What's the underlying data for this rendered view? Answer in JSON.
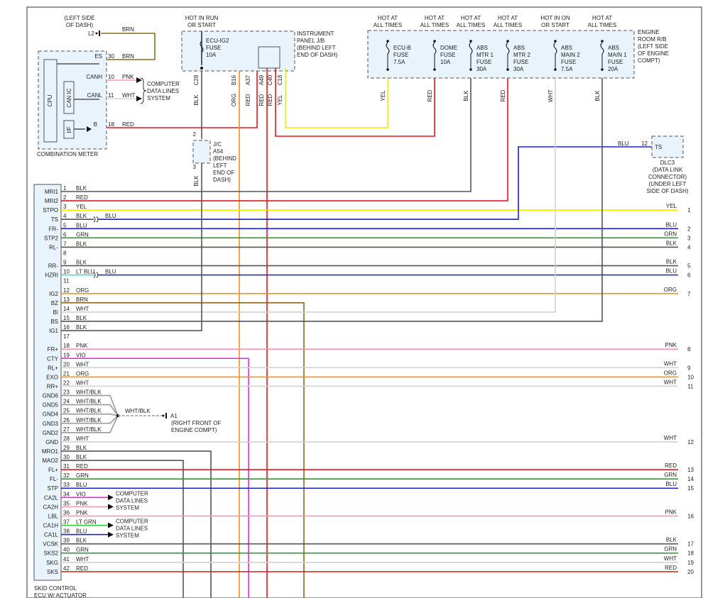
{
  "meter": {
    "location": [
      "(LEFT SIDE",
      "OF DASH)"
    ],
    "ground": "L2",
    "ground_wire": "BRN",
    "pins": [
      {
        "name": "ES",
        "number": "30",
        "wire": "BRN"
      },
      {
        "name": "CANH",
        "number": "10",
        "wire": "PNK"
      },
      {
        "name": "CANL",
        "number": "11",
        "wire": "WHT"
      },
      {
        "name": "B",
        "number": "18",
        "wire": "RED"
      }
    ],
    "data_lines": [
      "COMPUTER",
      "DATA LINES",
      "SYSTEM"
    ],
    "cpu": "CPU",
    "can_ic": "CAN IC",
    "interface": "I/F",
    "label": "COMBINATION METER"
  },
  "junction_block": {
    "power": [
      "HOT IN RUN",
      "OR START"
    ],
    "fuse": [
      "ECU-IG2",
      "FUSE",
      "10A"
    ],
    "label": [
      "INSTRUMENT",
      "PANEL J/B",
      "(BEHIND LEFT",
      "END OF DASH)"
    ],
    "connectors": [
      {
        "pin": "C28",
        "wire": "BLK"
      },
      {
        "pin": "B16",
        "wire": "ORG"
      },
      {
        "pin": "A37",
        "wire": "RED"
      },
      {
        "pin": "A49",
        "wire": "RED"
      },
      {
        "pin": "C40",
        "wire": "RED"
      },
      {
        "pin": "C18",
        "wire": "YEL"
      }
    ]
  },
  "joint_connector": {
    "top_pin": "2",
    "label": [
      "J/C",
      "A54",
      "(BEHIND",
      "LEFT",
      "END OF",
      "DASH)"
    ],
    "bottom_pin": "3",
    "wire": "BLK"
  },
  "relay_box": {
    "label": [
      "ENGINE",
      "ROOM R/B",
      "(LEFT SIDE",
      "OF ENGINE",
      "COMPT)"
    ],
    "fuses": [
      {
        "power": [
          "HOT AT",
          "ALL TIMES"
        ],
        "name": [
          "ECU-B",
          "FUSE",
          "7.5A"
        ],
        "wire": "YEL"
      },
      {
        "power": [
          "HOT AT",
          "ALL TIMES"
        ],
        "name": [
          "DOME",
          "FUSE",
          "10A"
        ],
        "wire": "RED"
      },
      {
        "power": [
          "HOT AT",
          "ALL TIMES"
        ],
        "name": [
          "ABS",
          "MTR 1",
          "FUSE",
          "30A"
        ],
        "wire": "BLK"
      },
      {
        "power": [
          "HOT AT",
          "ALL TIMES"
        ],
        "name": [
          "ABS",
          "MTR 2",
          "FUSE",
          "30A"
        ],
        "wire": "RED"
      },
      {
        "power": [
          "HOT IN ON",
          "OR START"
        ],
        "name": [
          "ABS",
          "MAIN 2",
          "FUSE",
          "7.5A"
        ],
        "wire": "WHT"
      },
      {
        "power": [
          "HOT AT",
          "ALL TIMES"
        ],
        "name": [
          "ABS",
          "MAIN 1",
          "FUSE",
          "20A"
        ],
        "wire": "BLK"
      }
    ]
  },
  "dlc": {
    "wire": "BLU",
    "number": "12",
    "pin": "TS",
    "label": [
      "DLC3",
      "(DATA LINK",
      "CONNECTOR)",
      "(UNDER LEFT",
      "SIDE OF DASH)"
    ]
  },
  "ground": {
    "wire": "WHT/BLK",
    "point": "A1",
    "label": [
      "(RIGHT FRONT OF",
      "ENGINE COMPT)"
    ]
  },
  "ecu": {
    "label": [
      "SKID CONTROL",
      "ECU W/ ACTUATOR"
    ],
    "data_lines": [
      [
        "COMPUTER",
        "DATA LINES",
        "SYSTEM"
      ],
      [
        "COMPUTER",
        "DATA LINES",
        "SYSTEM"
      ]
    ],
    "pins": [
      {
        "name": "MRI1",
        "number": "1",
        "wire": "BLK"
      },
      {
        "name": "MRI2",
        "number": "2",
        "wire": "RED"
      },
      {
        "name": "STPO",
        "number": "3",
        "wire": "YEL",
        "right_label": "YEL",
        "right_number": "1"
      },
      {
        "name": "TS",
        "number": "4",
        "wire": "BLK",
        "wire2": "BLU"
      },
      {
        "name": "FR-",
        "number": "5",
        "wire": "BLU",
        "right_label": "BLU",
        "right_number": "2"
      },
      {
        "name": "STP2",
        "number": "6",
        "wire": "GRN",
        "right_label": "GRN",
        "right_number": "3"
      },
      {
        "name": "RL-",
        "number": "7",
        "wire": "BLK",
        "right_label": "BLK",
        "right_number": "4"
      },
      {
        "number": "8"
      },
      {
        "name": "RR-",
        "number": "9",
        "wire": "BLK",
        "right_label": "BLK",
        "right_number": "5"
      },
      {
        "name": "HZRI",
        "number": "10",
        "wire": "LT BLU",
        "wire2": "BLU",
        "right_label": "BLU",
        "right_number": "6"
      },
      {
        "number": "11"
      },
      {
        "name": "IG2",
        "number": "12",
        "wire": "ORG",
        "right_label": "ORG",
        "right_number": "7"
      },
      {
        "name": "BZ",
        "number": "13",
        "wire": "BRN"
      },
      {
        "name": "BI",
        "number": "14",
        "wire": "WHT"
      },
      {
        "name": "BS",
        "number": "15",
        "wire": "BLK"
      },
      {
        "name": "IG1",
        "number": "16",
        "wire": "BLK"
      },
      {
        "number": "17"
      },
      {
        "name": "FR+",
        "number": "18",
        "wire": "PNK",
        "right_label": "PNK",
        "right_number": "8"
      },
      {
        "name": "CTY",
        "number": "19",
        "wire": "VIO"
      },
      {
        "name": "RL+",
        "number": "20",
        "wire": "WHT",
        "right_label": "WHT",
        "right_number": "9"
      },
      {
        "name": "EXO",
        "number": "21",
        "wire": "ORG",
        "right_label": "ORG",
        "right_number": "10"
      },
      {
        "name": "RR+",
        "number": "22",
        "wire": "WHT",
        "right_label": "WHT",
        "right_number": "11"
      },
      {
        "name": "GND6",
        "number": "23",
        "wire": "WHT/BLK"
      },
      {
        "name": "GND5",
        "number": "24",
        "wire": "WHT/BLK"
      },
      {
        "name": "GND4",
        "number": "25",
        "wire": "WHT/BLK"
      },
      {
        "name": "GND3",
        "number": "26",
        "wire": "WHT/BLK"
      },
      {
        "name": "GND2",
        "number": "27",
        "wire": "WHT/BLK"
      },
      {
        "name": "GND",
        "number": "28",
        "wire": "WHT",
        "right_label": "WHT",
        "right_number": "12"
      },
      {
        "name": "MRO1",
        "number": "29",
        "wire": "BLK"
      },
      {
        "name": "MAO2",
        "number": "30",
        "wire": "BLK"
      },
      {
        "name": "FL+",
        "number": "31",
        "wire": "RED",
        "right_label": "RED",
        "right_number": "13"
      },
      {
        "name": "FL-",
        "number": "32",
        "wire": "GRN",
        "right_label": "GRN",
        "right_number": "14"
      },
      {
        "name": "STP",
        "number": "33",
        "wire": "BLU",
        "right_label": "BLU",
        "right_number": "15"
      },
      {
        "name": "CA2L",
        "number": "34",
        "wire": "VIO"
      },
      {
        "name": "CA2H",
        "number": "35",
        "wire": "PNK"
      },
      {
        "name": "LBL",
        "number": "36",
        "wire": "PNK",
        "right_label": "PNK",
        "right_number": "16"
      },
      {
        "name": "CA1H",
        "number": "37",
        "wire": "LT GRN"
      },
      {
        "name": "CA1L",
        "number": "38",
        "wire": "BLU"
      },
      {
        "name": "VCSK",
        "number": "39",
        "wire": "BLK",
        "right_label": "BLK",
        "right_number": "17"
      },
      {
        "name": "SKS2",
        "number": "40",
        "wire": "GRN",
        "right_label": "GRN",
        "right_number": "18"
      },
      {
        "name": "SKG",
        "number": "41",
        "wire": "WHT",
        "right_label": "WHT",
        "right_number": "19"
      },
      {
        "name": "SKS",
        "number": "42",
        "wire": "RED",
        "right_label": "RED",
        "right_number": "20"
      }
    ]
  },
  "wire_colors": {
    "BLK": "#555555",
    "RED": "#e8141e",
    "YEL": "#eeee00",
    "BLU": "#1a22d0",
    "GRN": "#2a9d2a",
    "ORG": "#f5901e",
    "WHT": "#d2d2d2",
    "BRN": "#8b6a1a",
    "PNK": "#f49ab0",
    "VIO": "#ee22ee",
    "LT BLU": "#22dddd",
    "LT GRN": "#33cc33",
    "WHT/BLK": "#999999"
  }
}
